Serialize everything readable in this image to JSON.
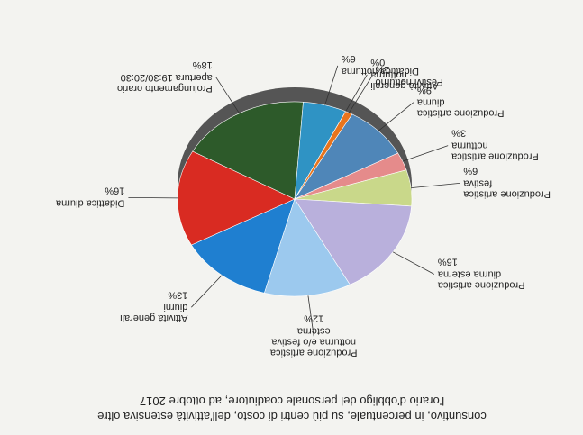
{
  "chart_data": {
    "type": "pie",
    "title": "consuntivo, in percentuale, su più centri di costo, dell'attività estensiva oltre l'orario d'obbligo del personale coadiutore,  ad ottobre 2017",
    "categories": [
      "Attività generali diurni",
      "Didattica diurna",
      "Prolungamento orario apertura 19:30/20:30",
      "Didattica notturna",
      "Attività generali notturna",
      "Festivi notturno",
      "Produzione artistica diurna",
      "Produzione artistica notturna",
      "Produzione artistica festiva",
      "Produzione artistica diurna esterna",
      "Produzione artistica notturna e/o festiva esterna"
    ],
    "values": [
      13,
      16,
      18,
      6,
      0,
      1,
      9,
      3,
      6,
      16,
      12
    ],
    "value_labels": [
      "13%",
      "16%",
      "18%",
      "6%",
      "0%",
      "1%",
      "9%",
      "3%",
      "6%",
      "16%",
      "12%"
    ],
    "colors": [
      "#1f7fd0",
      "#d92b22",
      "#2d5a2a",
      "#2f93c4",
      "#6a7f2a",
      "#e8741c",
      "#4f86b8",
      "#e58b8b",
      "#c9d88a",
      "#b9b0dc",
      "#9cc9ee"
    ]
  }
}
